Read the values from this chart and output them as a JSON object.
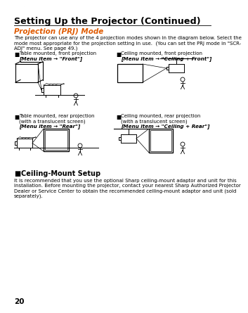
{
  "page_number": "20",
  "title": "Setting Up the Projector (Continued)",
  "section_title": "Projection (PRJ) Mode",
  "section_title_color": "#e05a00",
  "body_text_lines": [
    "The projector can use any of the 4 projection modes shown in the diagram below. Select the",
    "mode most appropriate for the projection setting in use.  (You can set the PRJ mode in \"SCR-",
    "ADJ\" menu. See page 49.)"
  ],
  "subsection_title": "Ceiling-Mount Setup",
  "subsection_body_lines": [
    "It is recommended that you use the optional Sharp ceiling-mount adaptor and unit for this",
    "installation. Before mounting the projector, contact your nearest Sharp Authorized Projector",
    "Dealer or Service Center to obtain the recommended ceiling-mount adaptor and unit (sold",
    "separately)."
  ],
  "bg_color": "#ffffff",
  "text_color": "#000000",
  "arc_color": "#aaaaaa",
  "divider_color": "#000000"
}
